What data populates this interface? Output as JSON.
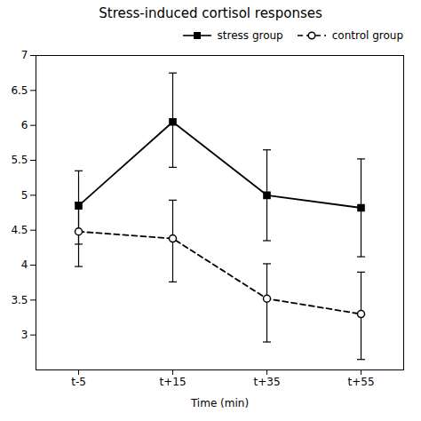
{
  "chart_data": {
    "type": "line",
    "title": "Stress-induced cortisol responses",
    "xlabel": "Time (min)",
    "categories": [
      "t-5",
      "t+15",
      "t+35",
      "t+55"
    ],
    "series": [
      {
        "name": "stress group",
        "color": "#000000",
        "marker": "square",
        "line_style": "solid",
        "values": [
          4.85,
          6.05,
          5.0,
          4.82
        ],
        "error_up": [
          0.5,
          0.7,
          0.65,
          0.7
        ],
        "error_down": [
          0.55,
          0.65,
          0.65,
          0.7
        ]
      },
      {
        "name": "control group",
        "color": "#000000",
        "marker": "circle",
        "line_style": "dashed",
        "values": [
          4.48,
          4.38,
          3.52,
          3.3
        ],
        "error_up": [
          0.42,
          0.55,
          0.5,
          0.6
        ],
        "error_down": [
          0.5,
          0.62,
          0.62,
          0.65
        ]
      }
    ],
    "ylim": [
      2.5,
      7.0
    ],
    "yticks": [
      3.0,
      3.5,
      4.0,
      4.5,
      5.0,
      5.5,
      6.0,
      6.5,
      7.0
    ],
    "grid": false,
    "legend": "right"
  }
}
